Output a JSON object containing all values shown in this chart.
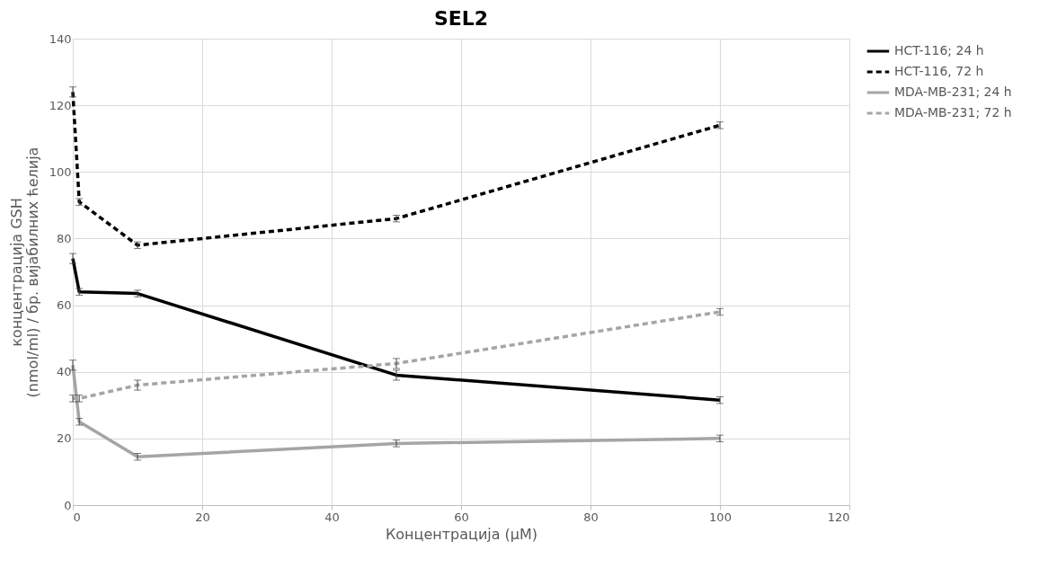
{
  "chart_data": {
    "type": "line",
    "title": "SEL2",
    "xlabel": "Концентрација (μM)",
    "ylabel": "концентрација GSH\n(nmol/ml)  / бр. вијабилних ћелија",
    "x": [
      0,
      1,
      10,
      50,
      100
    ],
    "series": [
      {
        "name": "HCT-116; 24 h",
        "color": "#000000",
        "line_style": "solid",
        "values": [
          74,
          64,
          63.5,
          39,
          31.5
        ],
        "errors": [
          1.5,
          1,
          1,
          1.5,
          1
        ]
      },
      {
        "name": "HCT-116, 72 h",
        "color": "#000000",
        "line_style": "dashed",
        "values": [
          124,
          91,
          78,
          86,
          114
        ],
        "errors": [
          1.5,
          1,
          1,
          1,
          1
        ]
      },
      {
        "name": "MDA-MB-231; 24 h",
        "color": "#a5a5a5",
        "line_style": "solid",
        "values": [
          42,
          25,
          14.5,
          18.5,
          20
        ],
        "errors": [
          1.5,
          1,
          1,
          1,
          1
        ]
      },
      {
        "name": "MDA-MB-231; 72 h",
        "color": "#a5a5a5",
        "line_style": "dashed",
        "values": [
          32,
          32,
          36,
          42.5,
          58
        ],
        "errors": [
          1,
          1,
          1.5,
          1.5,
          1
        ]
      }
    ],
    "xlim": [
      0,
      120
    ],
    "xticks": [
      0,
      20,
      40,
      60,
      80,
      100,
      120
    ],
    "ylim": [
      0,
      140
    ],
    "yticks": [
      0,
      20,
      40,
      60,
      80,
      100,
      120,
      140
    ],
    "grid": true,
    "legend": "right",
    "marker": "none"
  }
}
